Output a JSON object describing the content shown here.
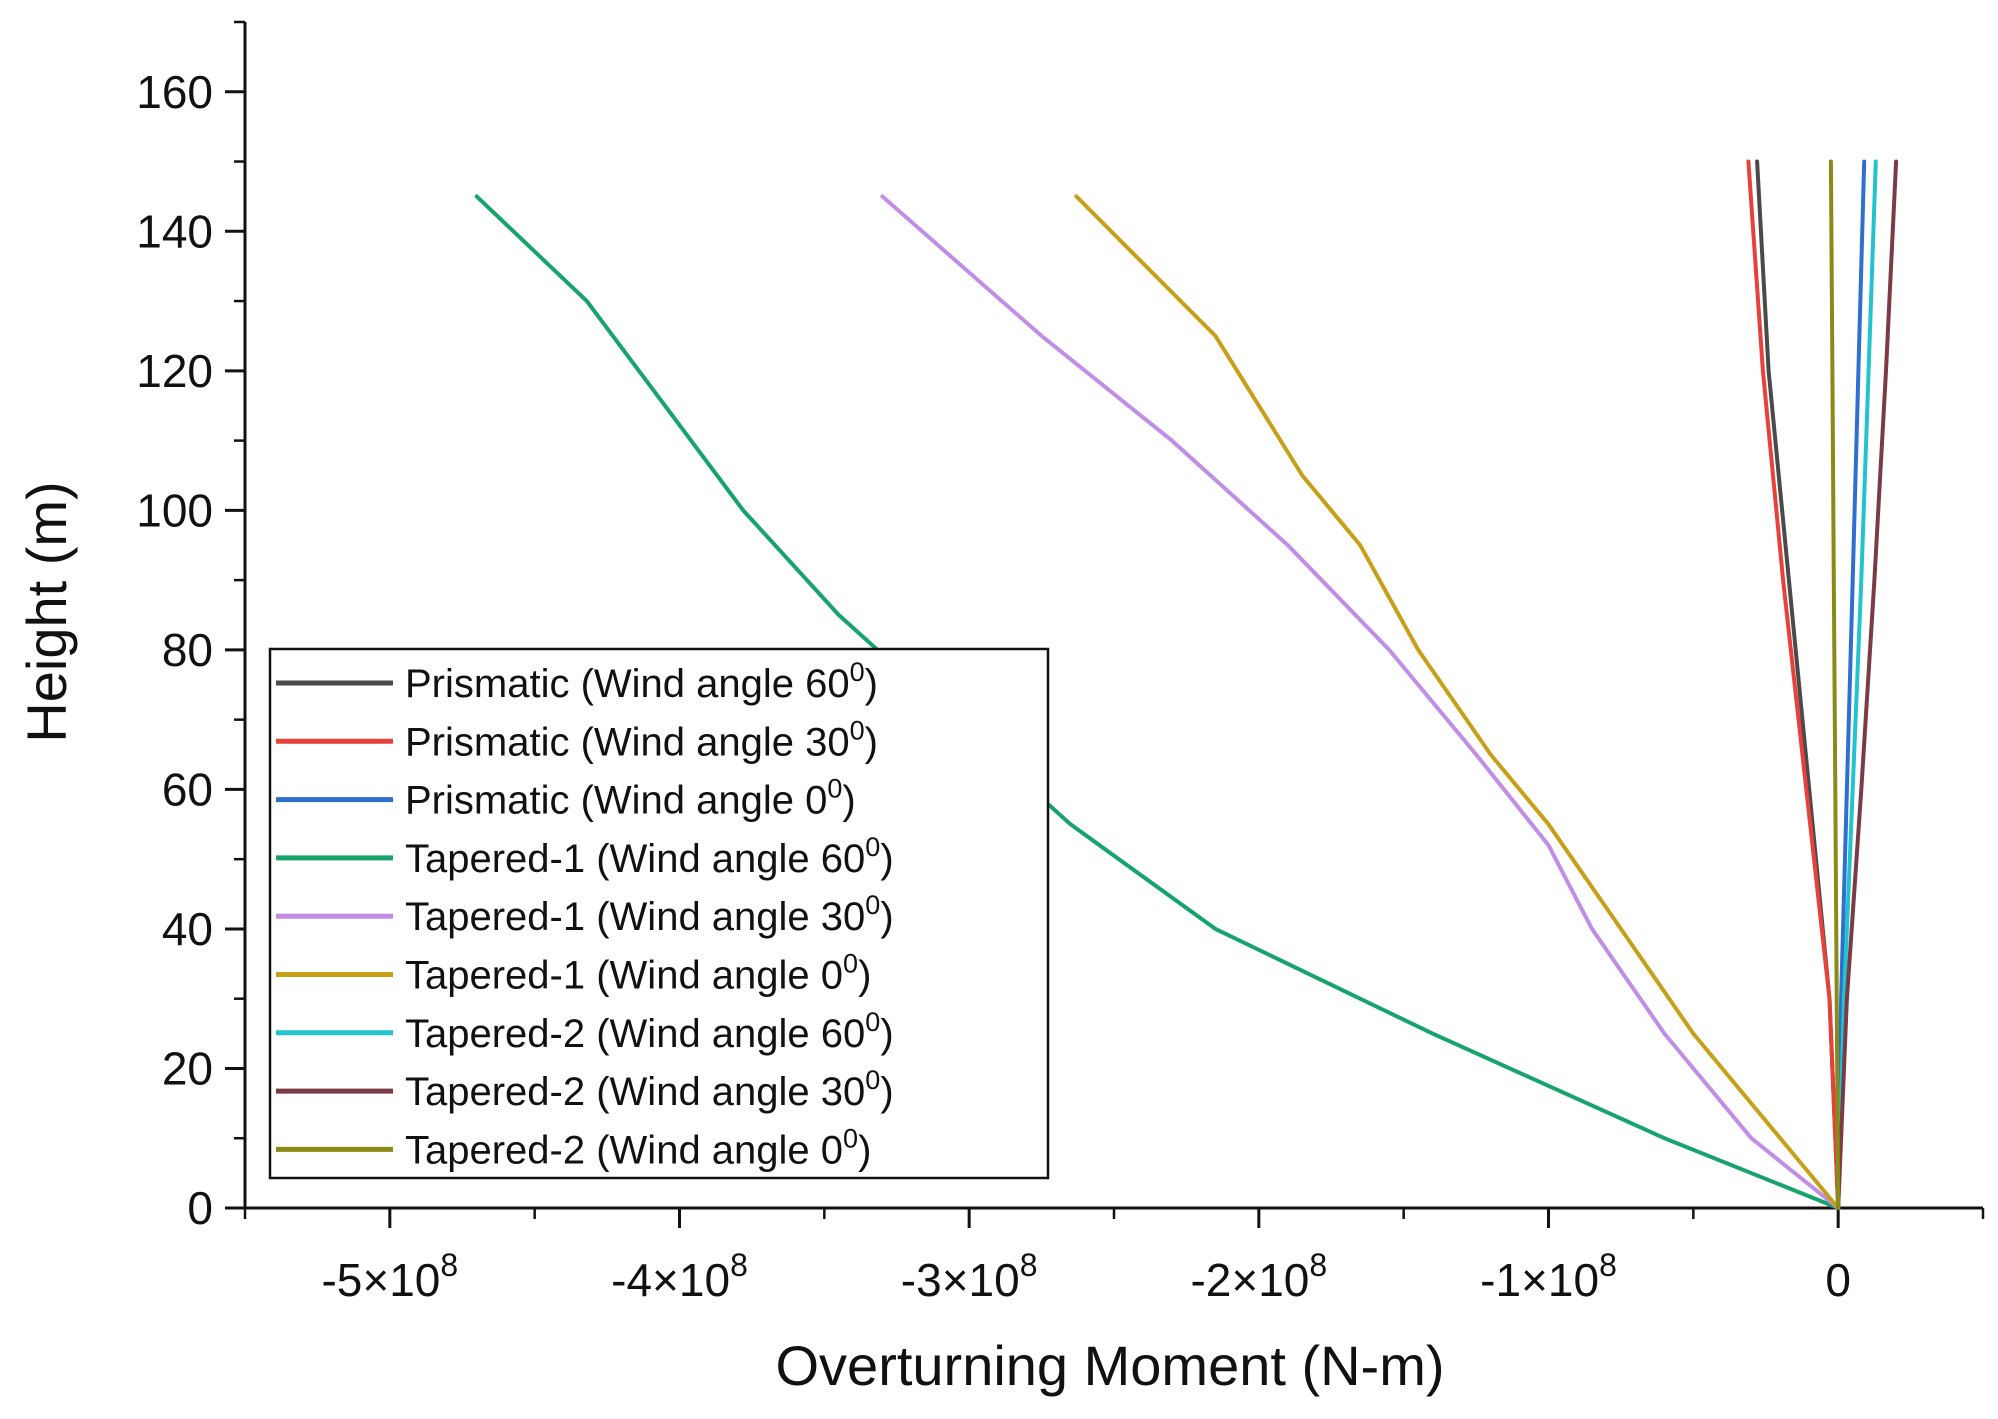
{
  "chart_data": {
    "type": "line",
    "xlabel": "Overturning Moment (N-m)",
    "ylabel": "Height (m)",
    "xlim": [
      -550000000,
      50000000
    ],
    "ylim": [
      0,
      170
    ],
    "x_ticks": [
      {
        "value": -500000000,
        "mantissa": "-5×10",
        "exp": "8"
      },
      {
        "value": -400000000,
        "mantissa": "-4×10",
        "exp": "8"
      },
      {
        "value": -300000000,
        "mantissa": "-3×10",
        "exp": "8"
      },
      {
        "value": -200000000,
        "mantissa": "-2×10",
        "exp": "8"
      },
      {
        "value": -100000000,
        "mantissa": "-1×10",
        "exp": "8"
      },
      {
        "value": 0,
        "mantissa": "0",
        "exp": ""
      }
    ],
    "y_ticks": [
      0,
      20,
      40,
      60,
      80,
      100,
      120,
      140,
      160
    ],
    "grid": false,
    "legend_position": "bottom-left",
    "series": [
      {
        "name": "Prismatic (Wind angle 60",
        "sup": "0",
        "suffix": ")",
        "color": "#4a4a4a",
        "points": [
          [
            0,
            0
          ],
          [
            -3000000,
            30
          ],
          [
            -10000000,
            60
          ],
          [
            -17000000,
            90
          ],
          [
            -24000000,
            120
          ],
          [
            -28000000,
            150
          ]
        ]
      },
      {
        "name": "Prismatic (Wind angle 30",
        "sup": "0",
        "suffix": ")",
        "color": "#e8413c",
        "points": [
          [
            0,
            0
          ],
          [
            -3000000,
            30
          ],
          [
            -11000000,
            60
          ],
          [
            -19000000,
            90
          ],
          [
            -26000000,
            120
          ],
          [
            -31000000,
            150
          ]
        ]
      },
      {
        "name": "Prismatic (Wind angle 0",
        "sup": "0",
        "suffix": ")",
        "color": "#2e6fd0",
        "points": [
          [
            0,
            0
          ],
          [
            1000000,
            30
          ],
          [
            3000000,
            60
          ],
          [
            5000000,
            90
          ],
          [
            7000000,
            120
          ],
          [
            9000000,
            150
          ]
        ]
      },
      {
        "name": "Tapered-1 (Wind angle 60",
        "sup": "0",
        "suffix": ")",
        "color": "#17a36c",
        "points": [
          [
            0,
            0
          ],
          [
            -60000000,
            10
          ],
          [
            -140000000,
            25
          ],
          [
            -215000000,
            40
          ],
          [
            -265000000,
            55
          ],
          [
            -305000000,
            70
          ],
          [
            -345000000,
            85
          ],
          [
            -378000000,
            100
          ],
          [
            -405000000,
            115
          ],
          [
            -432000000,
            130
          ],
          [
            -470000000,
            145
          ]
        ]
      },
      {
        "name": "Tapered-1 (Wind angle 30",
        "sup": "0",
        "suffix": ")",
        "color": "#c08ee6",
        "points": [
          [
            0,
            0
          ],
          [
            -30000000,
            10
          ],
          [
            -60000000,
            25
          ],
          [
            -85000000,
            40
          ],
          [
            -100000000,
            52
          ],
          [
            -125000000,
            65
          ],
          [
            -155000000,
            80
          ],
          [
            -190000000,
            95
          ],
          [
            -230000000,
            110
          ],
          [
            -275000000,
            125
          ],
          [
            -330000000,
            145
          ]
        ]
      },
      {
        "name": "Tapered-1 (Wind angle 0",
        "sup": "0",
        "suffix": ")",
        "color": "#c8a018",
        "points": [
          [
            0,
            0
          ],
          [
            -20000000,
            10
          ],
          [
            -50000000,
            25
          ],
          [
            -75000000,
            40
          ],
          [
            -100000000,
            55
          ],
          [
            -120000000,
            65
          ],
          [
            -145000000,
            80
          ],
          [
            -165000000,
            95
          ],
          [
            -185000000,
            105
          ],
          [
            -215000000,
            125
          ],
          [
            -263000000,
            145
          ]
        ]
      },
      {
        "name": "Tapered-2 (Wind angle 60",
        "sup": "0",
        "suffix": ")",
        "color": "#22c3cf",
        "points": [
          [
            0,
            0
          ],
          [
            2000000,
            30
          ],
          [
            5000000,
            60
          ],
          [
            8000000,
            90
          ],
          [
            10500000,
            120
          ],
          [
            13000000,
            150
          ]
        ]
      },
      {
        "name": "Tapered-2 (Wind angle 30",
        "sup": "0",
        "suffix": ")",
        "color": "#7a3b45",
        "points": [
          [
            0,
            0
          ],
          [
            3000000,
            30
          ],
          [
            8000000,
            60
          ],
          [
            12500000,
            90
          ],
          [
            16500000,
            120
          ],
          [
            20000000,
            150
          ]
        ]
      },
      {
        "name": "Tapered-2 (Wind angle 0",
        "sup": "0",
        "suffix": ")",
        "color": "#8a8a16",
        "points": [
          [
            0,
            0
          ],
          [
            -500000,
            30
          ],
          [
            -1000000,
            60
          ],
          [
            -1500000,
            90
          ],
          [
            -2000000,
            120
          ],
          [
            -2500000,
            150
          ]
        ]
      }
    ]
  }
}
